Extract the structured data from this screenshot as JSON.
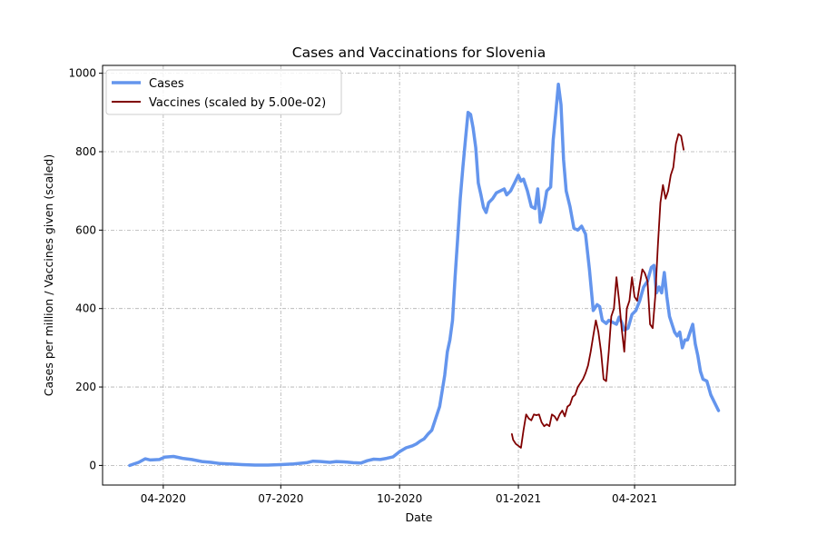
{
  "chart_data": {
    "type": "line",
    "title": "Cases and Vaccinations for Slovenia",
    "xlabel": "Date",
    "ylabel": "Cases per million / Vaccines given (scaled)",
    "xlim": [
      "2020-02-14",
      "2021-06-18"
    ],
    "ylim": [
      -50,
      1020
    ],
    "grid": true,
    "legend_position": "top-left",
    "x_ticks": [
      {
        "date": "2020-04-01",
        "label": "04-2020"
      },
      {
        "date": "2020-07-01",
        "label": "07-2020"
      },
      {
        "date": "2020-10-01",
        "label": "10-2020"
      },
      {
        "date": "2021-01-01",
        "label": "01-2021"
      },
      {
        "date": "2021-04-01",
        "label": "04-2021"
      }
    ],
    "y_ticks": [
      0,
      200,
      400,
      600,
      800,
      1000
    ],
    "series": [
      {
        "name": "Cases",
        "color": "#6495ed",
        "points": [
          [
            "2020-03-06",
            0
          ],
          [
            "2020-03-13",
            8
          ],
          [
            "2020-03-18",
            17
          ],
          [
            "2020-03-22",
            14
          ],
          [
            "2020-03-29",
            15
          ],
          [
            "2020-04-02",
            21
          ],
          [
            "2020-04-09",
            23
          ],
          [
            "2020-04-16",
            18
          ],
          [
            "2020-04-23",
            15
          ],
          [
            "2020-05-01",
            10
          ],
          [
            "2020-05-08",
            8
          ],
          [
            "2020-05-15",
            5
          ],
          [
            "2020-05-22",
            4
          ],
          [
            "2020-06-01",
            2
          ],
          [
            "2020-06-11",
            1
          ],
          [
            "2020-06-21",
            1
          ],
          [
            "2020-07-01",
            2
          ],
          [
            "2020-07-11",
            4
          ],
          [
            "2020-07-21",
            7
          ],
          [
            "2020-07-26",
            11
          ],
          [
            "2020-08-01",
            10
          ],
          [
            "2020-08-08",
            8
          ],
          [
            "2020-08-13",
            10
          ],
          [
            "2020-08-19",
            9
          ],
          [
            "2020-08-26",
            7
          ],
          [
            "2020-09-01",
            6
          ],
          [
            "2020-09-06",
            12
          ],
          [
            "2020-09-11",
            16
          ],
          [
            "2020-09-16",
            15
          ],
          [
            "2020-09-21",
            18
          ],
          [
            "2020-09-26",
            22
          ],
          [
            "2020-10-01",
            35
          ],
          [
            "2020-10-06",
            45
          ],
          [
            "2020-10-11",
            50
          ],
          [
            "2020-10-14",
            55
          ],
          [
            "2020-10-17",
            62
          ],
          [
            "2020-10-20",
            68
          ],
          [
            "2020-10-23",
            80
          ],
          [
            "2020-10-26",
            90
          ],
          [
            "2020-10-29",
            120
          ],
          [
            "2020-11-01",
            150
          ],
          [
            "2020-11-03",
            190
          ],
          [
            "2020-11-05",
            230
          ],
          [
            "2020-11-07",
            290
          ],
          [
            "2020-11-09",
            320
          ],
          [
            "2020-11-11",
            370
          ],
          [
            "2020-11-13",
            480
          ],
          [
            "2020-11-15",
            580
          ],
          [
            "2020-11-17",
            680
          ],
          [
            "2020-11-19",
            760
          ],
          [
            "2020-11-21",
            830
          ],
          [
            "2020-11-23",
            900
          ],
          [
            "2020-11-25",
            895
          ],
          [
            "2020-11-27",
            860
          ],
          [
            "2020-11-29",
            810
          ],
          [
            "2020-12-01",
            720
          ],
          [
            "2020-12-03",
            690
          ],
          [
            "2020-12-05",
            658
          ],
          [
            "2020-12-07",
            645
          ],
          [
            "2020-12-09",
            670
          ],
          [
            "2020-12-12",
            680
          ],
          [
            "2020-12-15",
            695
          ],
          [
            "2020-12-18",
            700
          ],
          [
            "2020-12-21",
            705
          ],
          [
            "2020-12-23",
            690
          ],
          [
            "2020-12-26",
            700
          ],
          [
            "2020-12-29",
            720
          ],
          [
            "2021-01-01",
            740
          ],
          [
            "2021-01-03",
            725
          ],
          [
            "2021-01-05",
            730
          ],
          [
            "2021-01-08",
            700
          ],
          [
            "2021-01-11",
            660
          ],
          [
            "2021-01-14",
            655
          ],
          [
            "2021-01-16",
            705
          ],
          [
            "2021-01-18",
            620
          ],
          [
            "2021-01-21",
            660
          ],
          [
            "2021-01-23",
            700
          ],
          [
            "2021-01-26",
            710
          ],
          [
            "2021-01-28",
            830
          ],
          [
            "2021-01-30",
            900
          ],
          [
            "2021-02-01",
            972
          ],
          [
            "2021-02-03",
            920
          ],
          [
            "2021-02-05",
            780
          ],
          [
            "2021-02-07",
            700
          ],
          [
            "2021-02-10",
            660
          ],
          [
            "2021-02-13",
            605
          ],
          [
            "2021-02-16",
            600
          ],
          [
            "2021-02-19",
            610
          ],
          [
            "2021-02-22",
            590
          ],
          [
            "2021-02-25",
            500
          ],
          [
            "2021-02-28",
            395
          ],
          [
            "2021-03-03",
            410
          ],
          [
            "2021-03-05",
            405
          ],
          [
            "2021-03-07",
            370
          ],
          [
            "2021-03-10",
            362
          ],
          [
            "2021-03-12",
            370
          ],
          [
            "2021-03-15",
            365
          ],
          [
            "2021-03-18",
            360
          ],
          [
            "2021-03-20",
            378
          ],
          [
            "2021-03-22",
            365
          ],
          [
            "2021-03-24",
            345
          ],
          [
            "2021-03-27",
            350
          ],
          [
            "2021-03-30",
            385
          ],
          [
            "2021-04-02",
            395
          ],
          [
            "2021-04-05",
            420
          ],
          [
            "2021-04-08",
            455
          ],
          [
            "2021-04-11",
            470
          ],
          [
            "2021-04-14",
            505
          ],
          [
            "2021-04-16",
            510
          ],
          [
            "2021-04-18",
            440
          ],
          [
            "2021-04-20",
            455
          ],
          [
            "2021-04-22",
            440
          ],
          [
            "2021-04-24",
            492
          ],
          [
            "2021-04-26",
            430
          ],
          [
            "2021-04-28",
            380
          ],
          [
            "2021-04-30",
            360
          ],
          [
            "2021-05-02",
            340
          ],
          [
            "2021-05-04",
            330
          ],
          [
            "2021-05-06",
            340
          ],
          [
            "2021-05-08",
            300
          ],
          [
            "2021-05-10",
            320
          ],
          [
            "2021-05-12",
            320
          ],
          [
            "2021-05-14",
            340
          ],
          [
            "2021-05-16",
            360
          ],
          [
            "2021-05-18",
            310
          ],
          [
            "2021-05-20",
            280
          ],
          [
            "2021-05-22",
            240
          ],
          [
            "2021-05-24",
            220
          ],
          [
            "2021-05-27",
            215
          ],
          [
            "2021-05-30",
            180
          ],
          [
            "2021-06-02",
            160
          ],
          [
            "2021-06-05",
            140
          ]
        ]
      },
      {
        "name": "Vaccines (scaled by 5.00e-02)",
        "color": "#800000",
        "points": [
          [
            "2020-12-27",
            80
          ],
          [
            "2020-12-28",
            65
          ],
          [
            "2020-12-29",
            60
          ],
          [
            "2020-12-30",
            55
          ],
          [
            "2021-01-01",
            50
          ],
          [
            "2021-01-03",
            45
          ],
          [
            "2021-01-05",
            90
          ],
          [
            "2021-01-07",
            130
          ],
          [
            "2021-01-09",
            120
          ],
          [
            "2021-01-11",
            115
          ],
          [
            "2021-01-13",
            130
          ],
          [
            "2021-01-15",
            128
          ],
          [
            "2021-01-17",
            130
          ],
          [
            "2021-01-19",
            110
          ],
          [
            "2021-01-21",
            100
          ],
          [
            "2021-01-23",
            105
          ],
          [
            "2021-01-25",
            100
          ],
          [
            "2021-01-27",
            130
          ],
          [
            "2021-01-29",
            125
          ],
          [
            "2021-01-31",
            115
          ],
          [
            "2021-02-02",
            130
          ],
          [
            "2021-02-04",
            140
          ],
          [
            "2021-02-06",
            125
          ],
          [
            "2021-02-08",
            150
          ],
          [
            "2021-02-10",
            155
          ],
          [
            "2021-02-12",
            175
          ],
          [
            "2021-02-14",
            180
          ],
          [
            "2021-02-16",
            200
          ],
          [
            "2021-02-18",
            210
          ],
          [
            "2021-02-20",
            220
          ],
          [
            "2021-02-22",
            235
          ],
          [
            "2021-02-24",
            255
          ],
          [
            "2021-02-26",
            290
          ],
          [
            "2021-02-28",
            330
          ],
          [
            "2021-03-02",
            370
          ],
          [
            "2021-03-04",
            340
          ],
          [
            "2021-03-06",
            290
          ],
          [
            "2021-03-08",
            220
          ],
          [
            "2021-03-10",
            215
          ],
          [
            "2021-03-12",
            290
          ],
          [
            "2021-03-14",
            380
          ],
          [
            "2021-03-16",
            400
          ],
          [
            "2021-03-18",
            480
          ],
          [
            "2021-03-20",
            420
          ],
          [
            "2021-03-22",
            350
          ],
          [
            "2021-03-24",
            290
          ],
          [
            "2021-03-26",
            400
          ],
          [
            "2021-03-28",
            420
          ],
          [
            "2021-03-30",
            480
          ],
          [
            "2021-04-01",
            430
          ],
          [
            "2021-04-03",
            420
          ],
          [
            "2021-04-05",
            460
          ],
          [
            "2021-04-07",
            500
          ],
          [
            "2021-04-09",
            490
          ],
          [
            "2021-04-11",
            470
          ],
          [
            "2021-04-13",
            360
          ],
          [
            "2021-04-15",
            350
          ],
          [
            "2021-04-17",
            430
          ],
          [
            "2021-04-19",
            560
          ],
          [
            "2021-04-21",
            670
          ],
          [
            "2021-04-23",
            715
          ],
          [
            "2021-04-25",
            680
          ],
          [
            "2021-04-27",
            700
          ],
          [
            "2021-04-29",
            740
          ],
          [
            "2021-05-01",
            760
          ],
          [
            "2021-05-03",
            820
          ],
          [
            "2021-05-05",
            845
          ],
          [
            "2021-05-07",
            840
          ],
          [
            "2021-05-09",
            805
          ]
        ]
      }
    ]
  }
}
